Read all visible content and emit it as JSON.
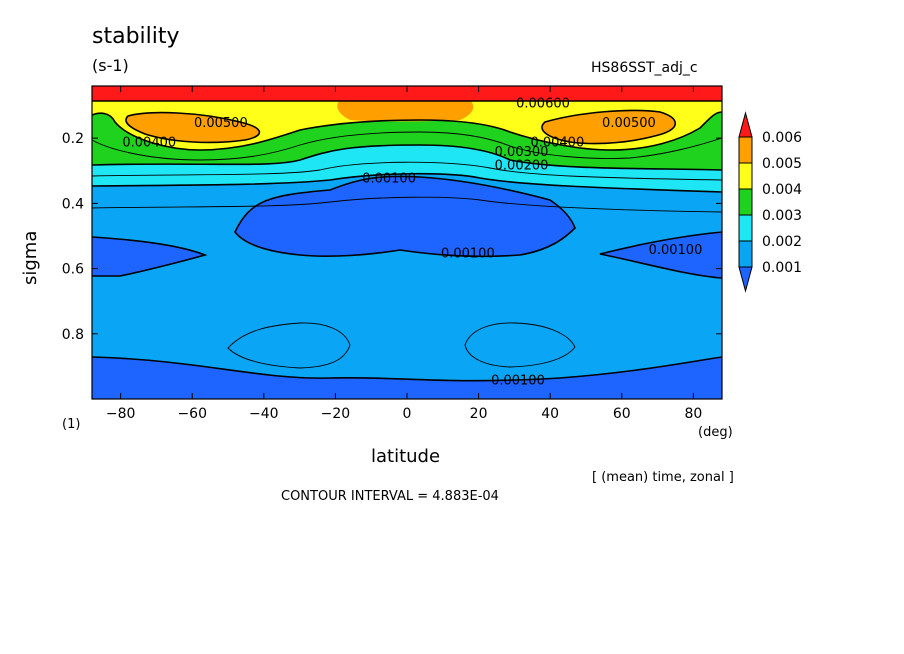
{
  "chart_data": {
    "type": "heatmap",
    "title": "stability",
    "units": "(s-1)",
    "experiment": "HS86SST_adj_c",
    "xlabel": "latitude",
    "ylabel": "sigma",
    "x_unit": "(deg)",
    "y_unit": "(1)",
    "xlim": [
      -88,
      88
    ],
    "ylim": [
      1.0,
      0.04
    ],
    "x_ticks": [
      -80,
      -60,
      -40,
      -20,
      0,
      20,
      40,
      60,
      80
    ],
    "y_ticks": [
      0.2,
      0.4,
      0.6,
      0.8
    ],
    "colorbar": {
      "levels": [
        0.001,
        0.002,
        0.003,
        0.004,
        0.005,
        0.006
      ],
      "colors": [
        "#1e64ff",
        "#0aa5f5",
        "#1ee6f5",
        "#1ed21e",
        "#ffff19",
        "#ffa000",
        "#ff1919"
      ]
    },
    "contour_labels": [
      {
        "text": "0.00500",
        "lat": -52,
        "sigma": 0.15
      },
      {
        "text": "0.00400",
        "lat": -72,
        "sigma": 0.21
      },
      {
        "text": "0.00500",
        "lat": 62,
        "sigma": 0.15
      },
      {
        "text": "0.00400",
        "lat": 42,
        "sigma": 0.21
      },
      {
        "text": "0.00300",
        "lat": 32,
        "sigma": 0.24
      },
      {
        "text": "0.00200",
        "lat": 32,
        "sigma": 0.28
      },
      {
        "text": "0.00600",
        "lat": 38,
        "sigma": 0.09
      },
      {
        "text": "0.00100",
        "lat": -5,
        "sigma": 0.32
      },
      {
        "text": "0.00100",
        "lat": 17,
        "sigma": 0.55
      },
      {
        "text": "0.00100",
        "lat": 75,
        "sigma": 0.54
      },
      {
        "text": "0.00100",
        "lat": 31,
        "sigma": 0.94
      }
    ],
    "contour_interval_label": "CONTOUR INTERVAL = 4.883E-04",
    "averaging_note": "[ (mean) time, zonal ]"
  }
}
